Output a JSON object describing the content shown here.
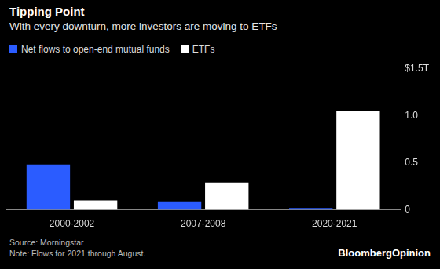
{
  "chart_data": {
    "type": "bar",
    "title": "Tipping Point",
    "subtitle": "With every downturn, more investors are moving to ETFs",
    "categories": [
      "2000-2002",
      "2007-2008",
      "2020-2021"
    ],
    "series": [
      {
        "name": "Net flows to open-end mutual funds",
        "color": "#2b5cff",
        "values": [
          0.48,
          0.09,
          0.02
        ]
      },
      {
        "name": "ETFs",
        "color": "#ffffff",
        "values": [
          0.1,
          0.29,
          1.05
        ]
      }
    ],
    "ylim": [
      0,
      1.5
    ],
    "yticks": [
      0,
      0.5,
      {
        "value": 1,
        "label": "1.0"
      },
      {
        "value": 1.5,
        "label": "$1.5T"
      }
    ],
    "grid": false,
    "legend": "top-left",
    "source": "Source: Morningstar",
    "note": "Note: Flows for 2021 through August.",
    "credit": "BloombergOpinion"
  }
}
